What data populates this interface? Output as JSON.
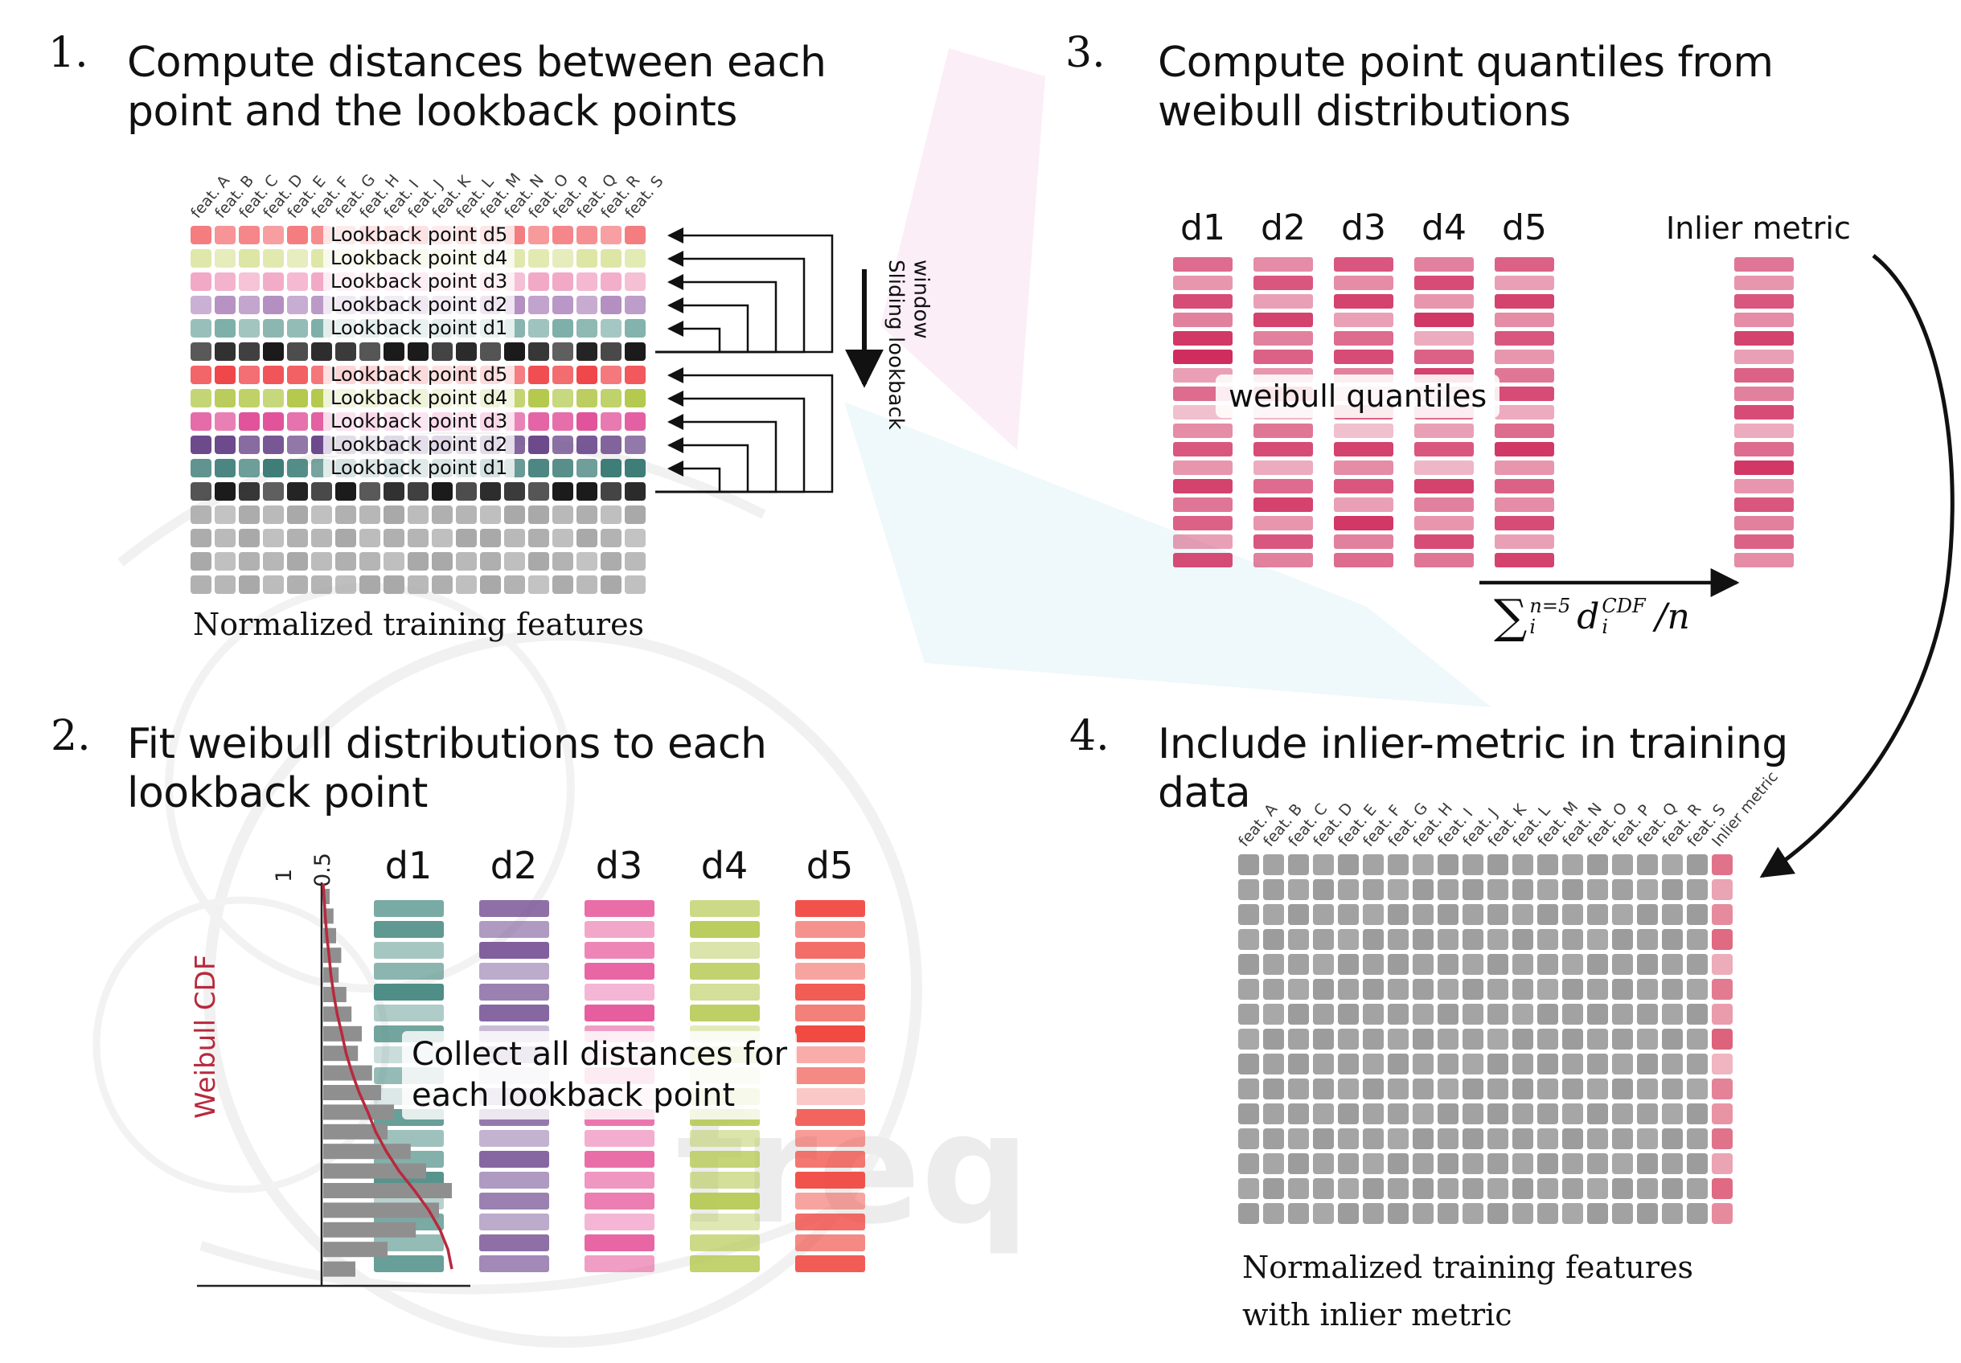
{
  "watermark": {
    "text": "freq"
  },
  "step1": {
    "number": "1.",
    "title": [
      "Compute distances between each",
      "point and the lookback points"
    ],
    "feature_labels": [
      "feat. A",
      "feat. B",
      "feat. C",
      "feat. D",
      "feat. E",
      "feat. F",
      "feat. G",
      "feat. H",
      "feat. I",
      "feat. J",
      "feat. K",
      "feat. L",
      "feat. M",
      "feat. N",
      "feat. O",
      "feat. P",
      "feat. Q",
      "feat. R",
      "feat. S"
    ],
    "cell_opacity_pattern": [
      1,
      0.82,
      0.93,
      0.75,
      1,
      0.88,
      0.7,
      0.96,
      0.8,
      1,
      0.73,
      0.9,
      0.84,
      1,
      0.78,
      0.92,
      0.86,
      0.74,
      1
    ],
    "rows": [
      {
        "label": "Lookback point d5",
        "color": "#f47d80"
      },
      {
        "label": "Lookback point d4",
        "color": "#dde6a4"
      },
      {
        "label": "Lookback point d3",
        "color": "#f2a9c6"
      },
      {
        "label": "Lookback point d2",
        "color": "#b48fc2"
      },
      {
        "label": "Lookback point d1",
        "color": "#7fafa9"
      },
      {
        "label": "",
        "color": "#1b1b1b"
      },
      {
        "label": "Lookback point d5",
        "color": "#f0474b"
      },
      {
        "label": "Lookback point d4",
        "color": "#b4c94e"
      },
      {
        "label": "Lookback point d3",
        "color": "#e1549b"
      },
      {
        "label": "Lookback point d2",
        "color": "#6d4a8c"
      },
      {
        "label": "Lookback point d1",
        "color": "#3e7d78"
      },
      {
        "label": "",
        "color": "#1b1b1b"
      },
      {
        "label": "",
        "color": "#a9a9a9"
      },
      {
        "label": "",
        "color": "#a9a9a9"
      },
      {
        "label": "",
        "color": "#a9a9a9"
      },
      {
        "label": "",
        "color": "#a9a9a9"
      }
    ],
    "sliding_label": [
      "Sliding",
      "lookback",
      "window"
    ],
    "caption": "Normalized training features"
  },
  "step2": {
    "number": "2.",
    "title": [
      "Fit weibull distributions to each",
      "lookback point"
    ],
    "hist": {
      "cdf_label": "Weibull CDF",
      "tick_labels": [
        "1",
        "0.5"
      ],
      "bar_color": "#8f8f8f",
      "curve_color": "#b8293d",
      "values": [
        0.05,
        0.08,
        0.1,
        0.14,
        0.12,
        0.18,
        0.22,
        0.3,
        0.27,
        0.38,
        0.45,
        0.55,
        0.5,
        0.68,
        0.8,
        1.0,
        0.9,
        0.72,
        0.5,
        0.25
      ]
    },
    "overlay": [
      "Collect all distances for",
      "each lookback point"
    ],
    "columns": [
      {
        "label": "d1",
        "color": "#4e8e86",
        "shades": [
          0.75,
          0.9,
          0.5,
          0.65,
          1,
          0.45,
          0.8,
          0.3,
          0.6,
          0.2,
          0.85,
          0.55,
          0.7,
          0.95,
          0.4,
          0.75,
          0.6,
          0.85
        ]
      },
      {
        "label": "d2",
        "color": "#7a5798",
        "shades": [
          0.85,
          0.6,
          0.95,
          0.5,
          0.75,
          0.9,
          0.4,
          0.65,
          0.25,
          0.55,
          0.8,
          0.45,
          0.9,
          0.6,
          0.75,
          0.5,
          0.85,
          0.7
        ]
      },
      {
        "label": "d3",
        "color": "#e75e9f",
        "shades": [
          0.9,
          0.55,
          0.75,
          0.95,
          0.45,
          1,
          0.6,
          0.35,
          0.7,
          0.25,
          0.85,
          0.5,
          0.9,
          0.65,
          0.8,
          0.45,
          0.95,
          0.6
        ]
      },
      {
        "label": "d4",
        "color": "#b7ca55",
        "shades": [
          0.7,
          0.95,
          0.5,
          0.85,
          0.6,
          0.9,
          0.4,
          0.75,
          0.3,
          0.65,
          0.9,
          0.5,
          0.8,
          0.6,
          0.95,
          0.45,
          0.7,
          0.85
        ]
      },
      {
        "label": "d5",
        "color": "#f04a42",
        "shades": [
          0.95,
          0.6,
          0.8,
          0.5,
          0.9,
          0.7,
          1,
          0.45,
          0.65,
          0.3,
          0.85,
          0.55,
          0.75,
          0.95,
          0.5,
          0.8,
          0.65,
          0.9
        ]
      }
    ]
  },
  "step3": {
    "number": "3.",
    "title": [
      "Compute point quantiles from",
      "weibull distributions"
    ],
    "base_color": "#cf2d5e",
    "columns": [
      {
        "label": "d1",
        "shades": [
          0.7,
          0.5,
          0.85,
          0.6,
          0.95,
          1,
          0.45,
          0.7,
          0.3,
          0.55,
          0.8,
          0.5,
          0.9,
          0.65,
          0.75,
          0.45,
          0.85
        ]
      },
      {
        "label": "d2",
        "shades": [
          0.55,
          0.8,
          0.45,
          0.9,
          0.6,
          0.75,
          0.5,
          0.95,
          0.35,
          0.65,
          0.85,
          0.4,
          0.7,
          0.9,
          0.5,
          0.8,
          0.6
        ]
      },
      {
        "label": "d3",
        "shades": [
          0.8,
          0.55,
          0.9,
          0.45,
          0.7,
          0.85,
          0.6,
          0.4,
          0.75,
          0.3,
          0.9,
          0.55,
          0.8,
          0.45,
          0.95,
          0.6,
          0.7
        ]
      },
      {
        "label": "d4",
        "shades": [
          0.6,
          0.85,
          0.5,
          0.95,
          0.4,
          0.75,
          0.9,
          0.55,
          0.7,
          0.45,
          0.8,
          0.35,
          0.9,
          0.6,
          0.5,
          0.85,
          0.65
        ]
      },
      {
        "label": "d5",
        "shades": [
          0.75,
          0.45,
          0.9,
          0.55,
          0.8,
          0.5,
          0.65,
          0.85,
          0.4,
          0.7,
          0.95,
          0.5,
          0.75,
          0.55,
          0.85,
          0.45,
          0.9
        ]
      }
    ],
    "overlay": "weibull quantiles",
    "inlier": {
      "label": "Inlier metric",
      "shades": [
        0.65,
        0.5,
        0.8,
        0.55,
        0.9,
        0.45,
        0.75,
        0.6,
        0.85,
        0.4,
        0.7,
        0.95,
        0.5,
        0.8,
        0.6,
        0.75,
        0.55
      ]
    },
    "formula": {
      "sigma": "∑",
      "upper": "n=5",
      "lower": "i",
      "var": "d",
      "var_sup": "CDF",
      "var_sub": "i",
      "tail": "/n"
    }
  },
  "step4": {
    "number": "4.",
    "title": [
      "Include inlier-metric in training",
      "data"
    ],
    "feature_labels": [
      "feat. A",
      "feat. B",
      "feat. C",
      "feat. D",
      "feat. E",
      "feat. F",
      "feat. G",
      "feat. H",
      "feat. I",
      "feat. J",
      "feat. K",
      "feat. L",
      "feat. M",
      "feat. N",
      "feat. O",
      "feat. P",
      "feat. Q",
      "feat. R",
      "feat. S",
      "Inlier metric"
    ],
    "gray_color": "#9c9c9c",
    "gray_pattern": [
      1,
      0.93,
      0.97,
      0.9,
      1,
      0.92,
      0.95,
      0.88,
      1,
      0.94
    ],
    "inlier_color": "#db5a74",
    "inlier_shades": [
      0.85,
      0.55,
      0.7,
      0.9,
      0.5,
      0.8,
      0.6,
      0.95,
      0.45,
      0.75,
      0.65,
      0.85,
      0.55,
      0.9,
      0.7
    ],
    "rows": 15,
    "caption": [
      "Normalized training features",
      "with inlier metric"
    ]
  }
}
